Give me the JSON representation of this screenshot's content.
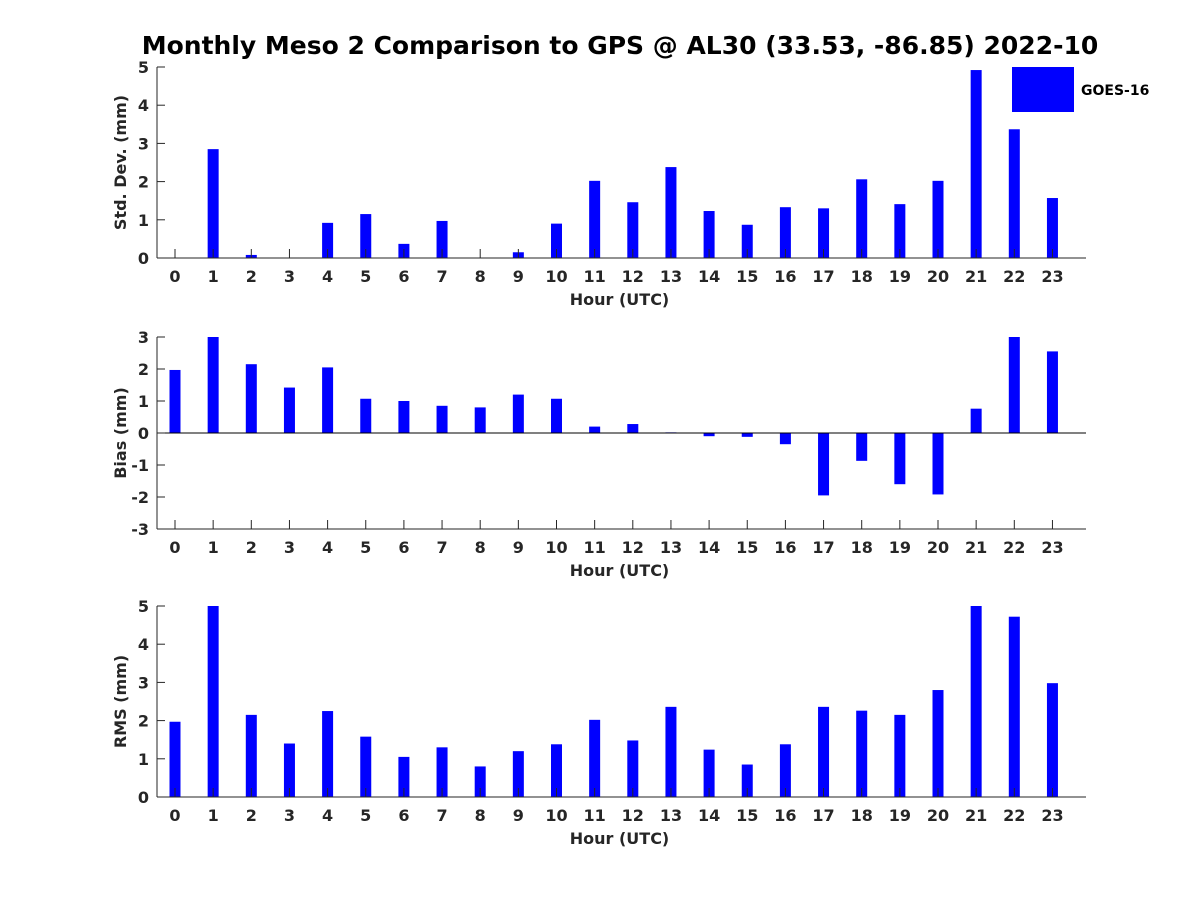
{
  "chart_data": {
    "title": "Monthly Meso 2 Comparison to GPS @ AL30 (33.53, -86.85) 2022-10",
    "legend": {
      "label": "GOES-16",
      "color": "#0000ff",
      "placement": "top-right"
    },
    "bar_color": "#0000ff",
    "panels": [
      {
        "type": "bar",
        "xlabel": "Hour (UTC)",
        "ylabel": "Std. Dev. (mm)",
        "ylim": [
          0,
          5
        ],
        "yticks": [
          "0",
          "1",
          "2",
          "3",
          "4",
          "5"
        ],
        "categories": [
          "0",
          "1",
          "2",
          "3",
          "4",
          "5",
          "6",
          "7",
          "8",
          "9",
          "10",
          "11",
          "12",
          "13",
          "14",
          "15",
          "16",
          "17",
          "18",
          "19",
          "20",
          "21",
          "22",
          "23"
        ],
        "values": [
          0,
          2.85,
          0.08,
          0,
          0.92,
          1.15,
          0.37,
          0.97,
          0,
          0.15,
          0.9,
          2.02,
          1.46,
          2.38,
          1.23,
          0.87,
          1.33,
          1.3,
          2.06,
          1.41,
          2.02,
          4.92,
          3.37,
          1.57
        ]
      },
      {
        "type": "bar",
        "xlabel": "Hour (UTC)",
        "ylabel": "Bias (mm)",
        "ylim": [
          -3,
          3
        ],
        "yticks": [
          "-3",
          "-2",
          "-1",
          "0",
          "1",
          "2",
          "3"
        ],
        "categories": [
          "0",
          "1",
          "2",
          "3",
          "4",
          "5",
          "6",
          "7",
          "8",
          "9",
          "10",
          "11",
          "12",
          "13",
          "14",
          "15",
          "16",
          "17",
          "18",
          "19",
          "20",
          "21",
          "22",
          "23"
        ],
        "values": [
          1.97,
          3.0,
          2.15,
          1.42,
          2.05,
          1.07,
          1.0,
          0.85,
          0.8,
          1.2,
          1.07,
          0.2,
          0.28,
          0.02,
          -0.1,
          -0.12,
          -0.35,
          -1.95,
          -0.87,
          -1.6,
          -1.92,
          0.76,
          3.0,
          2.55
        ]
      },
      {
        "type": "bar",
        "xlabel": "Hour (UTC)",
        "ylabel": "RMS (mm)",
        "ylim": [
          0,
          5
        ],
        "yticks": [
          "0",
          "1",
          "2",
          "3",
          "4",
          "5"
        ],
        "categories": [
          "0",
          "1",
          "2",
          "3",
          "4",
          "5",
          "6",
          "7",
          "8",
          "9",
          "10",
          "11",
          "12",
          "13",
          "14",
          "15",
          "16",
          "17",
          "18",
          "19",
          "20",
          "21",
          "22",
          "23"
        ],
        "values": [
          1.97,
          5.0,
          2.15,
          1.4,
          2.25,
          1.58,
          1.05,
          1.3,
          0.8,
          1.2,
          1.38,
          2.02,
          1.48,
          2.36,
          1.24,
          0.85,
          1.38,
          2.36,
          2.26,
          2.15,
          2.8,
          5.0,
          4.72,
          2.98
        ]
      }
    ]
  }
}
